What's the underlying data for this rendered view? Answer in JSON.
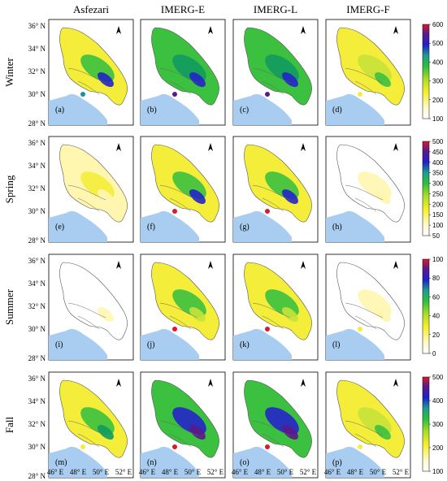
{
  "columns": [
    "Asfezari",
    "IMERG-E",
    "IMERG-L",
    "IMERG-F"
  ],
  "rows": [
    "Winter",
    "Spring",
    "Summer",
    "Fall"
  ],
  "panel_labels": [
    [
      "(a)",
      "(b)",
      "(c)",
      "(d)"
    ],
    [
      "(e)",
      "(f)",
      "(g)",
      "(h)"
    ],
    [
      "(i)",
      "(j)",
      "(k)",
      "(l)"
    ],
    [
      "(m)",
      "(n)",
      "(o)",
      "(p)"
    ]
  ],
  "lat_ticks": [
    "36° N",
    "34° N",
    "32° N",
    "30° N",
    "28° N"
  ],
  "lon_ticks": [
    "46° E",
    "48° E",
    "50° E",
    "52° E"
  ],
  "north_arrow_label": "N",
  "colorbars": [
    {
      "ticks": [
        "600",
        "500",
        "400",
        "300",
        "200",
        "100"
      ],
      "max": 600,
      "min": 50
    },
    {
      "ticks": [
        "500",
        "450",
        "400",
        "350",
        "300",
        "250",
        "200",
        "150",
        "100",
        "50"
      ],
      "max": 500,
      "min": 50
    },
    {
      "ticks": [
        "100",
        "80",
        "60",
        "40",
        "20",
        "0"
      ],
      "max": 100,
      "min": 0
    },
    {
      "ticks": [
        "500",
        "400",
        "300",
        "200",
        "100"
      ],
      "max": 550,
      "min": 50
    }
  ],
  "colors": {
    "water": "#a9cdf0",
    "outline": "#555555",
    "ramp": [
      "#ffffff",
      "#fff8c8",
      "#f6ef2a",
      "#a9dd2a",
      "#2fbf3a",
      "#1f9a8f",
      "#2020c8",
      "#5a1a8a",
      "#d81a2a"
    ]
  }
}
